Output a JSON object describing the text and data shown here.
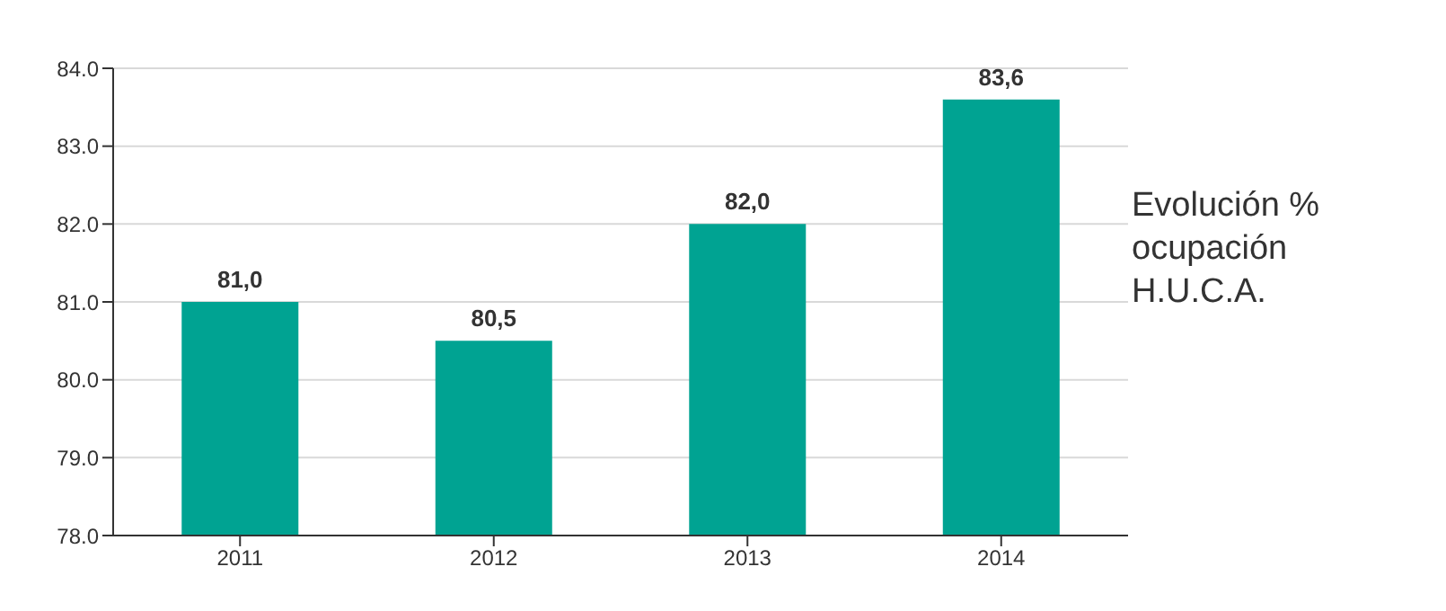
{
  "chart_data": {
    "type": "bar",
    "title": "Evolución % ocupación H.U.C.A.",
    "categories": [
      "2011",
      "2012",
      "2013",
      "2014"
    ],
    "values": [
      81.0,
      80.5,
      82.0,
      83.6
    ],
    "value_labels": [
      "81,0",
      "80,5",
      "82,0",
      "83,6"
    ],
    "color": "#00a392",
    "ylim": [
      78,
      84
    ],
    "yticks": [
      {
        "value": 78,
        "label": "78.0"
      },
      {
        "value": 79,
        "label": "79.0"
      },
      {
        "value": 80,
        "label": "80.0"
      },
      {
        "value": 81,
        "label": "81.0"
      },
      {
        "value": 82,
        "label": "82.0"
      },
      {
        "value": 83,
        "label": "83.0"
      },
      {
        "value": 84,
        "label": "84.0"
      }
    ],
    "grid": "y",
    "legend": false
  }
}
